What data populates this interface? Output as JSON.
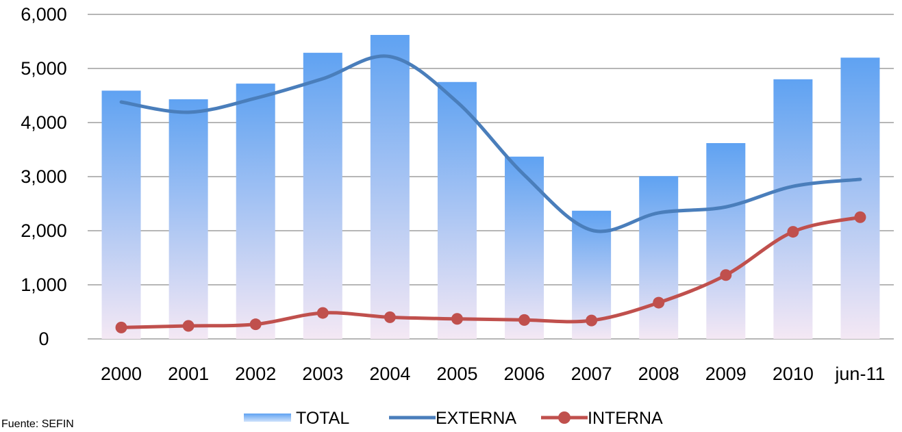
{
  "source_note": "Fuente: SEFIN",
  "chart_data": {
    "type": "bar",
    "categories": [
      "2000",
      "2001",
      "2002",
      "2003",
      "2004",
      "2005",
      "2006",
      "2007",
      "2008",
      "2009",
      "2010",
      "jun-11"
    ],
    "series": [
      {
        "name": "TOTAL",
        "kind": "bar",
        "color_top": "#5fa2f2",
        "color_bottom": "#f4e8f4",
        "values": [
          4590,
          4430,
          4720,
          5290,
          5620,
          4750,
          3370,
          2370,
          3010,
          3620,
          4800,
          5200
        ]
      },
      {
        "name": "EXTERNA",
        "kind": "line",
        "color": "#4a7ebb",
        "values": [
          4380,
          4190,
          4450,
          4810,
          5220,
          4380,
          3030,
          2010,
          2330,
          2440,
          2820,
          2950
        ]
      },
      {
        "name": "INTERNA",
        "kind": "line-markers",
        "color": "#c0504d",
        "values": [
          210,
          240,
          270,
          480,
          400,
          370,
          350,
          340,
          670,
          1180,
          1980,
          2250
        ]
      }
    ],
    "ylim": [
      0,
      6000
    ],
    "yticks": [
      "0",
      "1,000",
      "2,000",
      "3,000",
      "4,000",
      "5,000",
      "6,000"
    ],
    "ytick_values": [
      0,
      1000,
      2000,
      3000,
      4000,
      5000,
      6000
    ],
    "grid": true,
    "legend_position": "bottom"
  }
}
